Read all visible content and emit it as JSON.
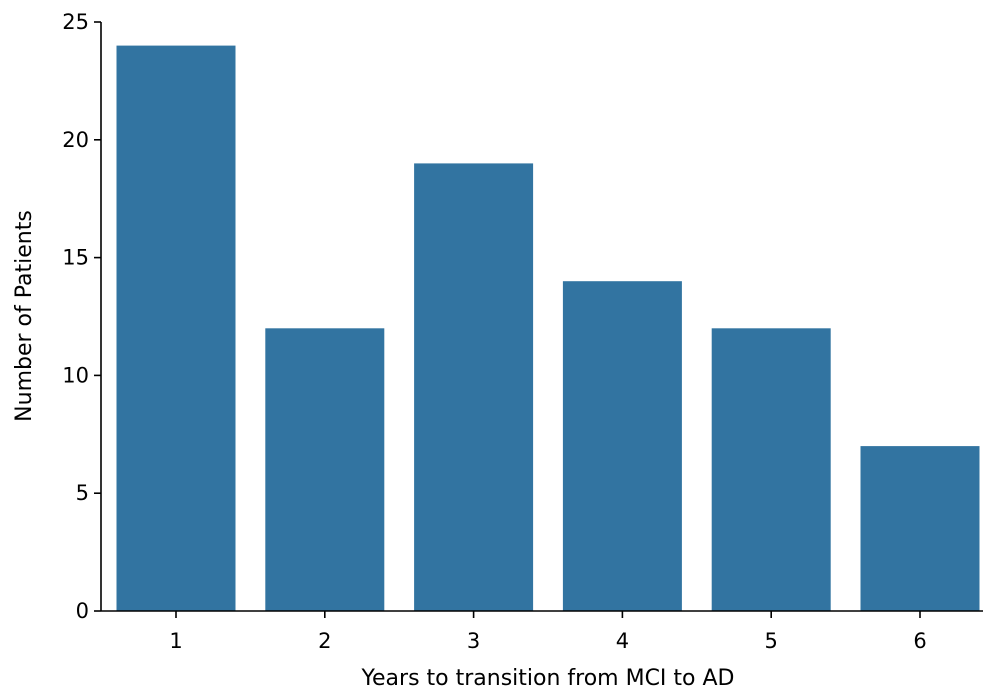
{
  "chart_data": {
    "type": "bar",
    "title": "",
    "xlabel": "Years to transition from MCI to AD",
    "ylabel": "Number of Patients",
    "categories": [
      "1",
      "2",
      "3",
      "4",
      "5",
      "6"
    ],
    "values": [
      24,
      12,
      19,
      14,
      12,
      7
    ],
    "ylim": [
      0,
      25
    ],
    "yticks": [
      0,
      5,
      10,
      15,
      20,
      25
    ],
    "ytick_labels": [
      "0",
      "5",
      "10",
      "15",
      "20",
      "25"
    ],
    "grid": false,
    "legend": "none",
    "bar_color": "#3274a1"
  }
}
